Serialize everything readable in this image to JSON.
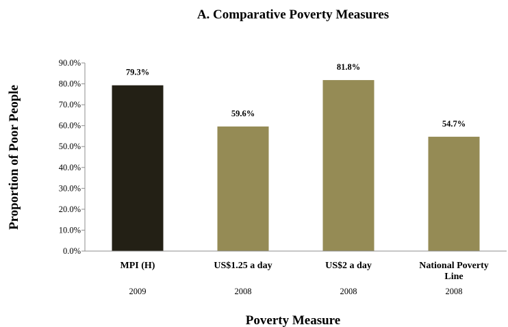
{
  "chart_data": {
    "type": "bar",
    "title": "A. Comparative Poverty Measures",
    "xlabel": "Poverty Measure",
    "ylabel": "Proportion  of Poor People",
    "categories": [
      "MPI (H)",
      "US$1.25 a day",
      "US$2 a day",
      "National Poverty Line"
    ],
    "category_lines": [
      [
        "MPI (H)"
      ],
      [
        "US$1.25 a day"
      ],
      [
        "US$2 a day"
      ],
      [
        "National Poverty",
        "Line"
      ]
    ],
    "years": [
      "2009",
      "2008",
      "2008",
      "2008"
    ],
    "values": [
      79.3,
      59.6,
      81.8,
      54.7
    ],
    "data_labels": [
      "79.3%",
      "59.6%",
      "81.8%",
      "54.7%"
    ],
    "bar_colors": [
      "#232015",
      "#958b55",
      "#958b55",
      "#958b55"
    ],
    "ylim": [
      0,
      90
    ],
    "yticks": [
      0,
      10,
      20,
      30,
      40,
      50,
      60,
      70,
      80,
      90
    ],
    "ytick_labels": [
      "0.0%",
      "10.0%",
      "20.0%",
      "30.0%",
      "40.0%",
      "50.0%",
      "60.0%",
      "70.0%",
      "80.0%",
      "90.0%"
    ],
    "grid": false,
    "legend": "none"
  }
}
